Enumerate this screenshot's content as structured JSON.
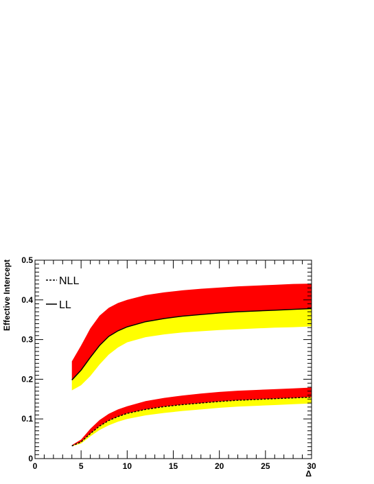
{
  "chart_data": {
    "type": "area",
    "title": "",
    "xlabel": "Δ",
    "ylabel": "Effective Intercept",
    "xlim": [
      0,
      30
    ],
    "ylim": [
      0,
      0.5
    ],
    "x_ticks": [
      "0",
      "5",
      "10",
      "15",
      "20",
      "25",
      "30"
    ],
    "y_ticks": [
      "0",
      "0.1",
      "0.2",
      "0.3",
      "0.4",
      "0.5"
    ],
    "grid": false,
    "legend_position": "top-left",
    "legend": [
      {
        "label": "NLL",
        "style": "dashed"
      },
      {
        "label": "LL",
        "style": "solid"
      }
    ],
    "x": [
      4,
      5,
      6,
      7,
      8,
      9,
      10,
      12,
      14,
      16,
      18,
      20,
      22,
      24,
      26,
      28,
      30
    ],
    "series": [
      {
        "name": "LL",
        "line_style": "solid",
        "center": [
          0.198,
          0.223,
          0.255,
          0.285,
          0.308,
          0.322,
          0.332,
          0.345,
          0.353,
          0.359,
          0.363,
          0.367,
          0.37,
          0.372,
          0.374,
          0.376,
          0.378
        ],
        "upper": [
          0.245,
          0.285,
          0.328,
          0.36,
          0.38,
          0.392,
          0.4,
          0.412,
          0.419,
          0.424,
          0.428,
          0.431,
          0.434,
          0.436,
          0.438,
          0.44,
          0.441
        ],
        "lower": [
          0.172,
          0.185,
          0.208,
          0.237,
          0.262,
          0.28,
          0.293,
          0.306,
          0.313,
          0.318,
          0.321,
          0.324,
          0.326,
          0.328,
          0.33,
          0.331,
          0.333
        ]
      },
      {
        "name": "NLL",
        "line_style": "dashed",
        "center": [
          0.032,
          0.042,
          0.063,
          0.082,
          0.096,
          0.106,
          0.114,
          0.124,
          0.131,
          0.136,
          0.14,
          0.144,
          0.147,
          0.149,
          0.151,
          0.153,
          0.155
        ],
        "upper": [
          0.034,
          0.048,
          0.075,
          0.097,
          0.113,
          0.124,
          0.132,
          0.145,
          0.153,
          0.159,
          0.164,
          0.168,
          0.171,
          0.173,
          0.175,
          0.177,
          0.179
        ],
        "lower": [
          0.031,
          0.038,
          0.056,
          0.072,
          0.084,
          0.093,
          0.1,
          0.109,
          0.115,
          0.12,
          0.124,
          0.128,
          0.131,
          0.133,
          0.135,
          0.137,
          0.139
        ]
      }
    ],
    "colors": {
      "band_upper": "#ff0000",
      "band_lower": "#ffff00",
      "line": "#000000"
    }
  }
}
